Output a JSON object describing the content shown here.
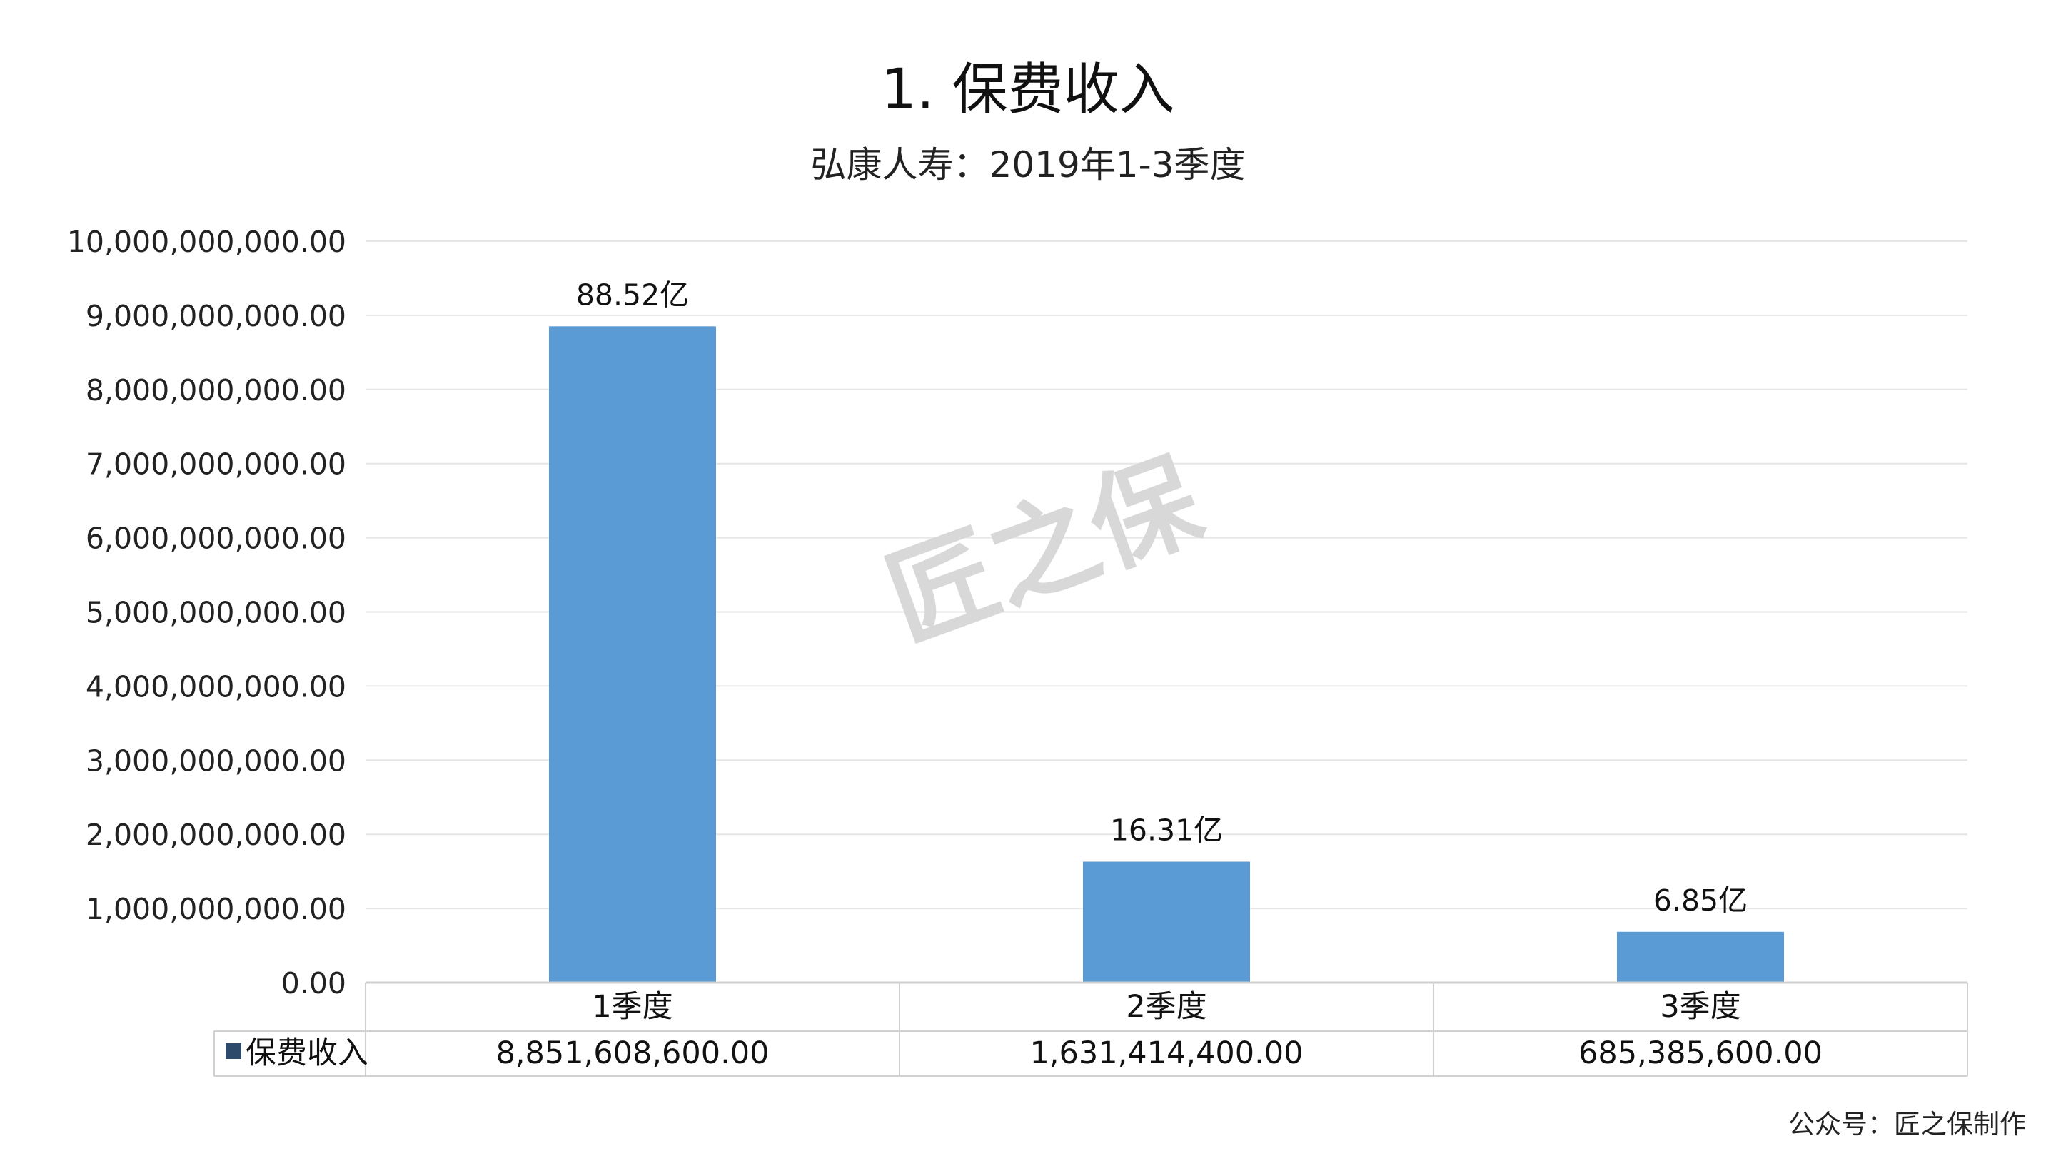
{
  "watermark": "匠之保",
  "footer": "公众号：匠之保制作",
  "colors": {
    "bar": "#5b9bd5",
    "grid": "#e6e6e6",
    "table_border": "#d0d0d0",
    "legend_marker": "#2e4a6b"
  },
  "chart_data": {
    "type": "bar",
    "title": "1. 保费收入",
    "subtitle": "弘康人寿：2019年1-3季度",
    "categories": [
      "1季度",
      "2季度",
      "3季度"
    ],
    "series": [
      {
        "name": "保费收入",
        "values": [
          8851608600.0,
          1631414400.0,
          685385600.0
        ],
        "data_labels": [
          "88.52亿",
          "16.31亿",
          "6.85亿"
        ],
        "table_values": [
          "8,851,608,600.00",
          "1,631,414,400.00",
          "685,385,600.00"
        ]
      }
    ],
    "ylim": [
      0,
      10000000000
    ],
    "yticks": [
      "0.00",
      "1,000,000,000.00",
      "2,000,000,000.00",
      "3,000,000,000.00",
      "4,000,000,000.00",
      "5,000,000,000.00",
      "6,000,000,000.00",
      "7,000,000,000.00",
      "8,000,000,000.00",
      "9,000,000,000.00",
      "10,000,000,000.00"
    ],
    "grid": true,
    "legend": "data-table"
  }
}
